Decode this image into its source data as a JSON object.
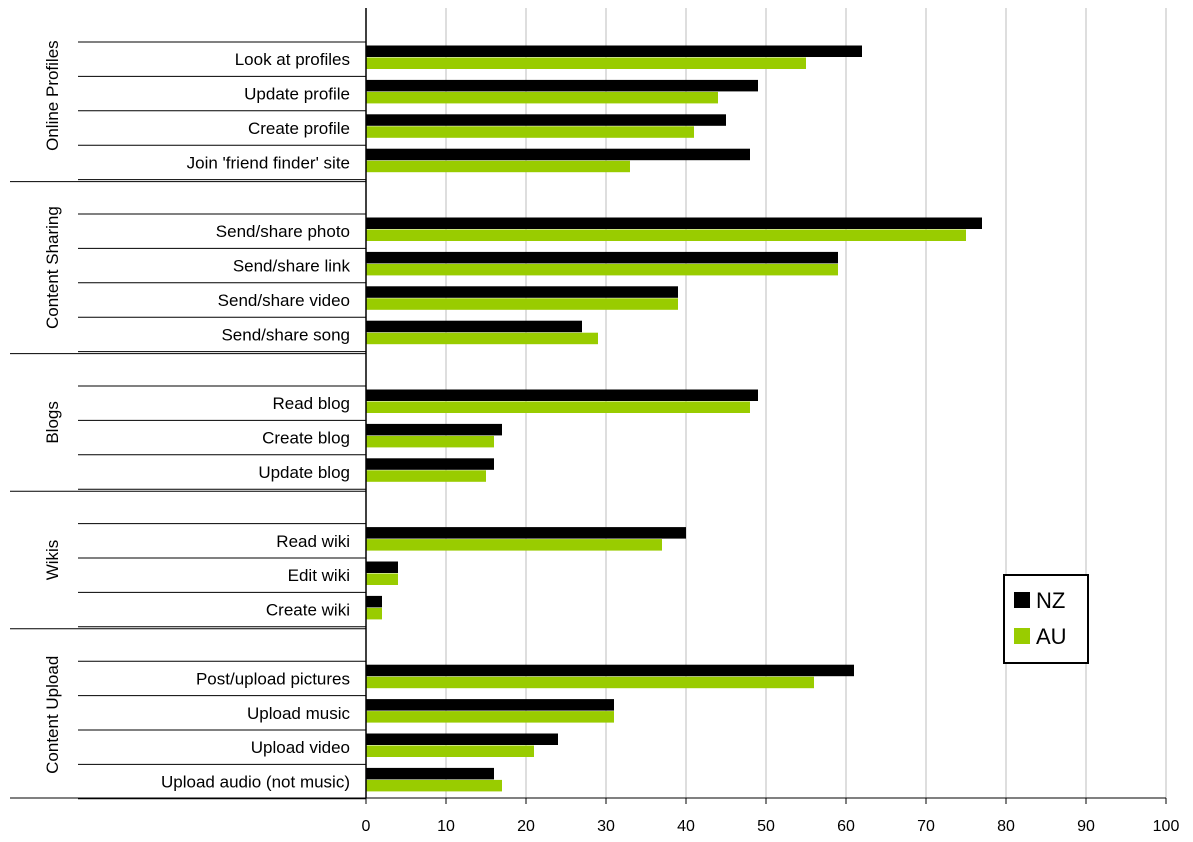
{
  "chart_data": {
    "type": "bar",
    "orientation": "horizontal",
    "xlim": [
      0,
      100
    ],
    "x_ticks": [
      0,
      10,
      20,
      30,
      40,
      50,
      60,
      70,
      80,
      90,
      100
    ],
    "grid": true,
    "legend_position": "right",
    "colors": {
      "NZ": "#000000",
      "AU": "#99cc00"
    },
    "series": [
      {
        "name": "NZ",
        "color": "#000000"
      },
      {
        "name": "AU",
        "color": "#99cc00"
      }
    ],
    "groups": [
      {
        "label": "Online Profiles",
        "rows": [
          {
            "label": "Look at profiles",
            "values": [
              62,
              55
            ]
          },
          {
            "label": "Update profile",
            "values": [
              49,
              44
            ]
          },
          {
            "label": "Create profile",
            "values": [
              45,
              41
            ]
          },
          {
            "label": "Join 'friend finder' site",
            "values": [
              48,
              33
            ]
          }
        ]
      },
      {
        "label": "Content Sharing",
        "rows": [
          {
            "label": "Send/share photo",
            "values": [
              77,
              75
            ]
          },
          {
            "label": "Send/share link",
            "values": [
              59,
              59
            ]
          },
          {
            "label": "Send/share video",
            "values": [
              39,
              39
            ]
          },
          {
            "label": "Send/share song",
            "values": [
              27,
              29
            ]
          }
        ]
      },
      {
        "label": "Blogs",
        "rows": [
          {
            "label": "Read blog",
            "values": [
              49,
              48
            ]
          },
          {
            "label": "Create blog",
            "values": [
              17,
              16
            ]
          },
          {
            "label": "Update blog",
            "values": [
              16,
              15
            ]
          }
        ]
      },
      {
        "label": "Wikis",
        "rows": [
          {
            "label": "Read wiki",
            "values": [
              40,
              37
            ]
          },
          {
            "label": "Edit wiki",
            "values": [
              4,
              4
            ]
          },
          {
            "label": "Create wiki",
            "values": [
              2,
              2
            ]
          }
        ]
      },
      {
        "label": "Content Upload",
        "rows": [
          {
            "label": "Post/upload pictures",
            "values": [
              61,
              56
            ]
          },
          {
            "label": "Upload music",
            "values": [
              31,
              31
            ]
          },
          {
            "label": "Upload video",
            "values": [
              24,
              21
            ]
          },
          {
            "label": "Upload audio (not music)",
            "values": [
              16,
              17
            ]
          }
        ]
      }
    ]
  }
}
